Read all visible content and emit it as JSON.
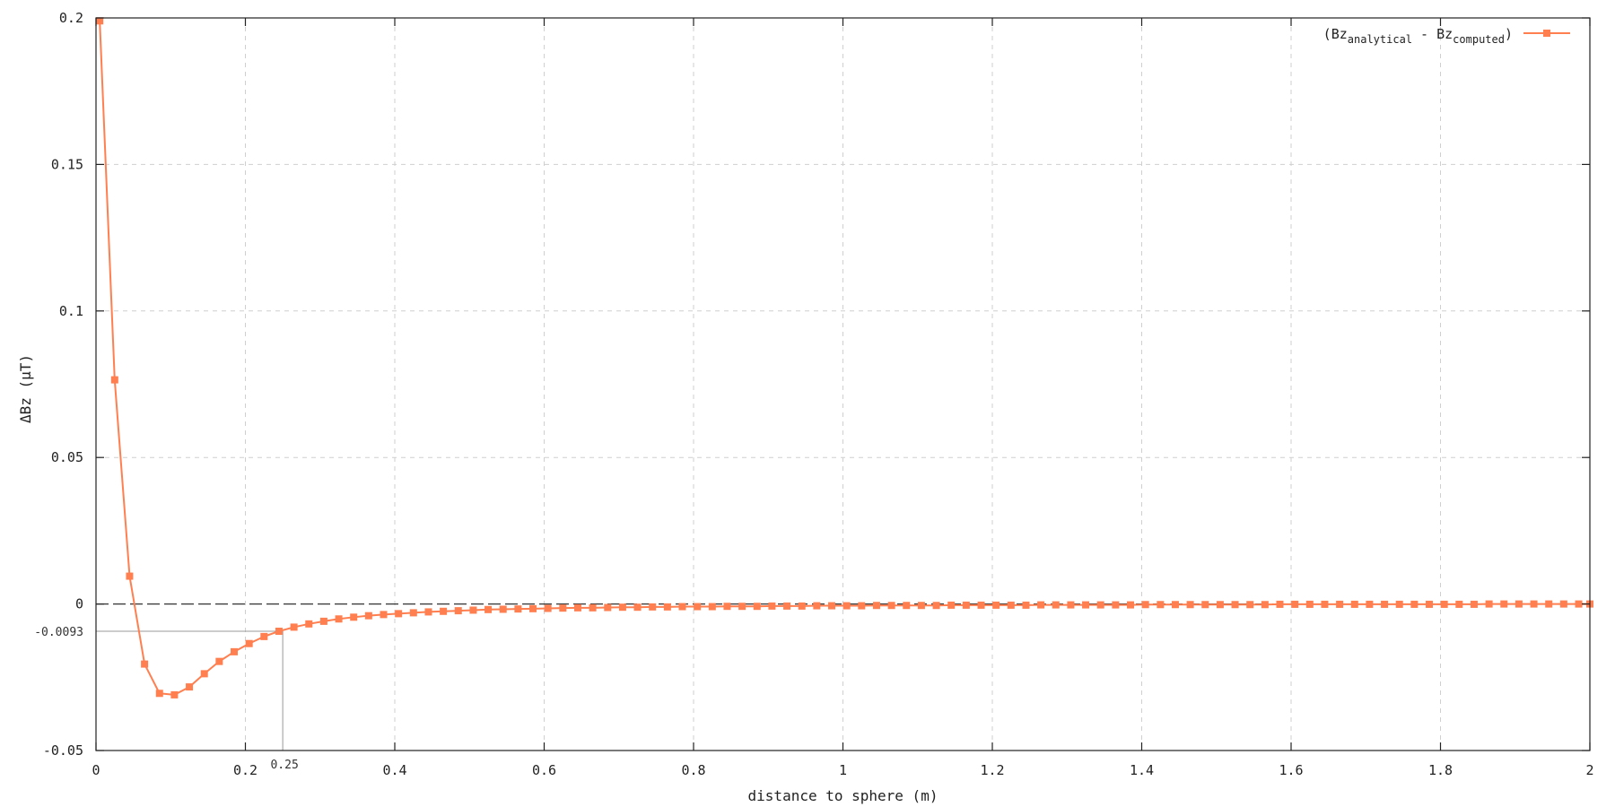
{
  "chart_data": {
    "type": "line",
    "xlabel": "distance to sphere (m)",
    "ylabel": "ΔBz (μT)",
    "xlim": [
      0,
      2
    ],
    "ylim": [
      -0.05,
      0.2
    ],
    "grid": true,
    "legend_position": "top-right",
    "x_ticks": [
      "0",
      "0.2",
      "0.4",
      "0.6",
      "0.8",
      "1",
      "1.2",
      "1.4",
      "1.6",
      "1.8",
      "2"
    ],
    "x_tick_values": [
      0,
      0.2,
      0.4,
      0.6,
      0.8,
      1.0,
      1.2,
      1.4,
      1.6,
      1.8,
      2.0
    ],
    "y_ticks": [
      "-0.05",
      "0",
      "0.05",
      "0.1",
      "0.15",
      "0.2"
    ],
    "y_tick_values": [
      -0.05,
      0,
      0.05,
      0.1,
      0.15,
      0.2
    ],
    "reference_line": {
      "y": 0,
      "style": "dashed"
    },
    "annotation": {
      "x": 0.25,
      "y": -0.0093,
      "x_label": "0.25",
      "y_label": "-0.0093"
    },
    "legend": {
      "prefix": "(Bz",
      "sub1": "analytical",
      "middle": " - Bz",
      "sub2": "computed",
      "suffix": ")"
    },
    "series": [
      {
        "color": "#ff7f50",
        "marker": "square",
        "x": [
          0.005,
          0.025,
          0.045,
          0.065,
          0.085,
          0.105,
          0.125,
          0.145,
          0.165,
          0.185,
          0.205,
          0.225,
          0.245,
          0.265,
          0.285,
          0.305,
          0.325,
          0.345,
          0.365,
          0.385,
          0.405,
          0.425,
          0.445,
          0.465,
          0.485,
          0.505,
          0.525,
          0.545,
          0.565,
          0.585,
          0.605,
          0.625,
          0.645,
          0.665,
          0.685,
          0.705,
          0.725,
          0.745,
          0.765,
          0.785,
          0.805,
          0.825,
          0.845,
          0.865,
          0.885,
          0.905,
          0.925,
          0.945,
          0.965,
          0.985,
          1.005,
          1.025,
          1.045,
          1.065,
          1.085,
          1.105,
          1.125,
          1.145,
          1.165,
          1.185,
          1.205,
          1.225,
          1.245,
          1.265,
          1.285,
          1.305,
          1.325,
          1.345,
          1.365,
          1.385,
          1.405,
          1.425,
          1.445,
          1.465,
          1.485,
          1.505,
          1.525,
          1.545,
          1.565,
          1.585,
          1.605,
          1.625,
          1.645,
          1.665,
          1.685,
          1.705,
          1.725,
          1.745,
          1.765,
          1.785,
          1.805,
          1.825,
          1.845,
          1.865,
          1.885,
          1.905,
          1.925,
          1.945,
          1.965,
          1.985,
          2.0
        ],
        "y": [
          0.199,
          0.0765,
          0.0095,
          -0.0205,
          -0.0305,
          -0.031,
          -0.0283,
          -0.0238,
          -0.0196,
          -0.0163,
          -0.0135,
          -0.0111,
          -0.0093,
          -0.0079,
          -0.0068,
          -0.0059,
          -0.0051,
          -0.0045,
          -0.004,
          -0.0036,
          -0.0033,
          -0.003,
          -0.0027,
          -0.0025,
          -0.0023,
          -0.0021,
          -0.0019,
          -0.0018,
          -0.0017,
          -0.0016,
          -0.0015,
          -0.0014,
          -0.0013,
          -0.0013,
          -0.0012,
          -0.0011,
          -0.0011,
          -0.001,
          -0.001,
          -0.0009,
          -0.0009,
          -0.0009,
          -0.0008,
          -0.0008,
          -0.0008,
          -0.0007,
          -0.0007,
          -0.0007,
          -0.0006,
          -0.0006,
          -0.0006,
          -0.0006,
          -0.0005,
          -0.0005,
          -0.0005,
          -0.0005,
          -0.0005,
          -0.0004,
          -0.0004,
          -0.0004,
          -0.0004,
          -0.0004,
          -0.0004,
          -0.0003,
          -0.0003,
          -0.0003,
          -0.0003,
          -0.0003,
          -0.0003,
          -0.0003,
          -0.0002,
          -0.0002,
          -0.0002,
          -0.0002,
          -0.0002,
          -0.0002,
          -0.0002,
          -0.0002,
          -0.0002,
          -0.0001,
          -0.0001,
          -0.0001,
          -0.0001,
          -0.0001,
          -0.0001,
          -0.0001,
          -0.0001,
          -0.0001,
          -0.0001,
          -0.0001,
          -0.0001,
          -0.0001,
          -0.0001,
          0,
          0,
          0,
          0,
          0,
          0,
          0,
          0
        ]
      }
    ]
  }
}
